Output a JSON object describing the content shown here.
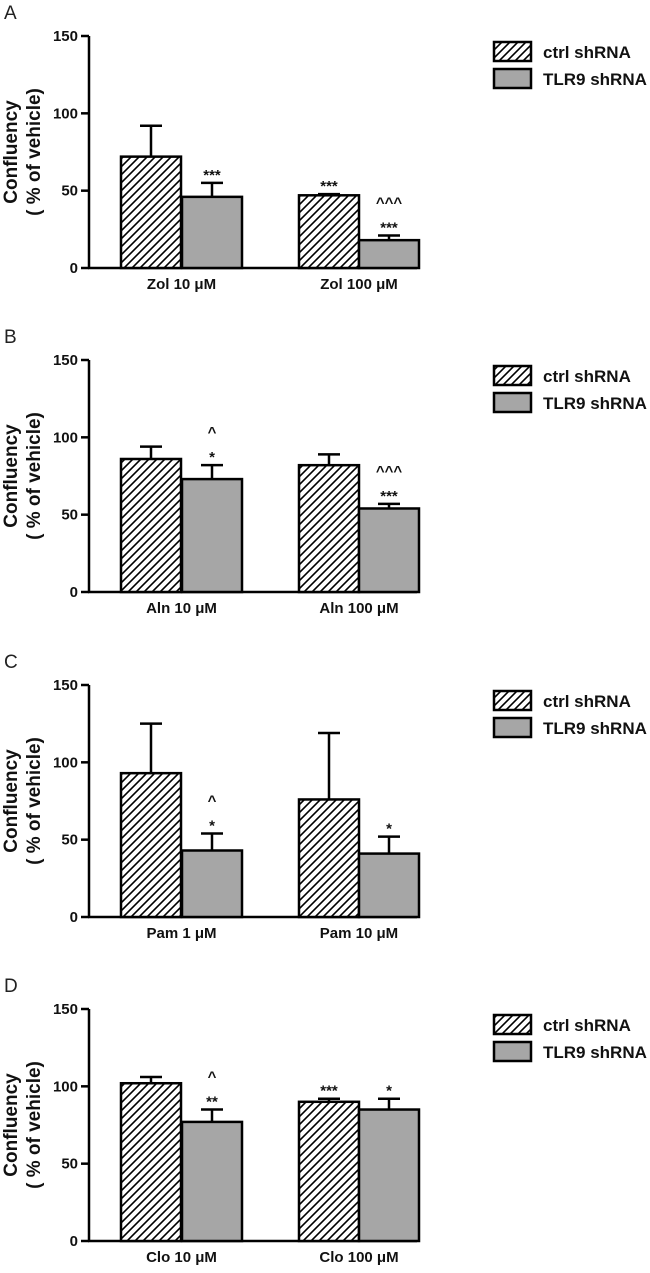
{
  "chart_data": [
    {
      "type": "bar",
      "panel": "A",
      "categories": [
        "Zol 10 μM",
        "Zol 100 μM"
      ],
      "ylabel": [
        "Confluency",
        "( % of vehicle)"
      ],
      "ylim": [
        0,
        150
      ],
      "yticks": [
        "0",
        "50",
        "100",
        "150"
      ],
      "series": [
        {
          "name": "ctrl shRNA",
          "values": [
            72,
            47
          ],
          "errors": [
            20,
            0.8
          ],
          "annotations": [
            "",
            "***"
          ]
        },
        {
          "name": "TLR9 shRNA",
          "values": [
            46,
            18
          ],
          "errors": [
            9,
            3
          ],
          "annotations": [
            "***",
            "***|^^^"
          ]
        }
      ]
    },
    {
      "type": "bar",
      "panel": "B",
      "categories": [
        "Aln 10 μM",
        "Aln 100 μM"
      ],
      "ylabel": [
        "Confluency",
        "( % of vehicle)"
      ],
      "ylim": [
        0,
        150
      ],
      "yticks": [
        "0",
        "50",
        "100",
        "150"
      ],
      "series": [
        {
          "name": "ctrl shRNA",
          "values": [
            86,
            82
          ],
          "errors": [
            8,
            7
          ],
          "annotations": [
            "",
            ""
          ]
        },
        {
          "name": "TLR9 shRNA",
          "values": [
            73,
            54
          ],
          "errors": [
            9,
            3
          ],
          "annotations": [
            "*|^",
            "***|^^^"
          ]
        }
      ]
    },
    {
      "type": "bar",
      "panel": "C",
      "categories": [
        "Pam 1 μM",
        "Pam 10  μM"
      ],
      "ylabel": [
        "Confluency",
        "( % of vehicle)"
      ],
      "ylim": [
        0,
        150
      ],
      "yticks": [
        "0",
        "50",
        "100",
        "150"
      ],
      "series": [
        {
          "name": "ctrl shRNA",
          "values": [
            93,
            76
          ],
          "errors": [
            32,
            43
          ],
          "annotations": [
            "",
            ""
          ]
        },
        {
          "name": "TLR9 shRNA",
          "values": [
            43,
            41
          ],
          "errors": [
            11,
            11
          ],
          "annotations": [
            "*|^",
            "*"
          ]
        }
      ]
    },
    {
      "type": "bar",
      "panel": "D",
      "categories": [
        "Clo 10 μM",
        "Clo 100 μM"
      ],
      "ylabel": [
        "Confluency",
        "( % of vehicle)"
      ],
      "ylim": [
        0,
        150
      ],
      "yticks": [
        "0",
        "50",
        "100",
        "150"
      ],
      "series": [
        {
          "name": "ctrl shRNA",
          "values": [
            102,
            90
          ],
          "errors": [
            4,
            2
          ],
          "annotations": [
            "",
            "***"
          ]
        },
        {
          "name": "TLR9 shRNA",
          "values": [
            77,
            85
          ],
          "errors": [
            8,
            7
          ],
          "annotations": [
            "**|^",
            "*"
          ]
        }
      ]
    }
  ],
  "legend": {
    "ctrl": "ctrl shRNA",
    "tlr9": "TLR9 shRNA"
  },
  "colors": {
    "tlr9_fill": "#a6a6a6",
    "stroke": "#000000",
    "hatch": "#000000",
    "background": "#ffffff"
  }
}
